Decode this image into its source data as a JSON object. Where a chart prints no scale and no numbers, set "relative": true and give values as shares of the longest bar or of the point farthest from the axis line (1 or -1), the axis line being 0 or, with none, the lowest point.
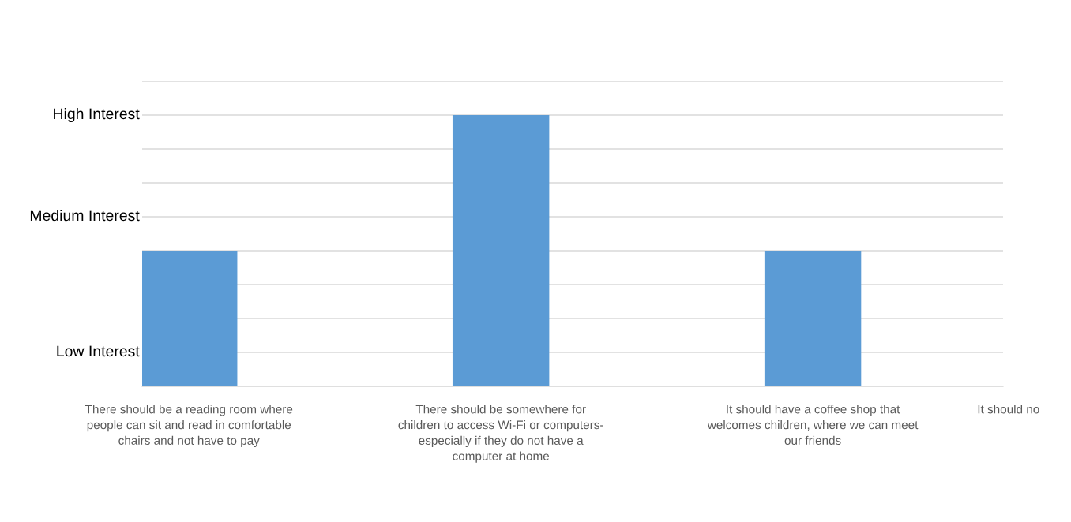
{
  "chart_data": {
    "type": "bar",
    "categories": [
      "There should be a reading room where\npeople can sit and read in comfortable\nchairs and not have to pay",
      "There should be somewhere for\nchildren to access Wi-Fi or computers-\nespecially if they do not have a\ncomputer at home",
      "It should have a coffee shop that\nwelcomes children, where we can meet\nour friends",
      "It should no"
    ],
    "values": [
      0.5,
      1,
      0.5,
      null
    ],
    "relative": true,
    "color": "#5b9bd5",
    "annotations": [
      "Low Interest",
      "Medium Interest",
      "High Interest"
    ],
    "grid": "y"
  }
}
